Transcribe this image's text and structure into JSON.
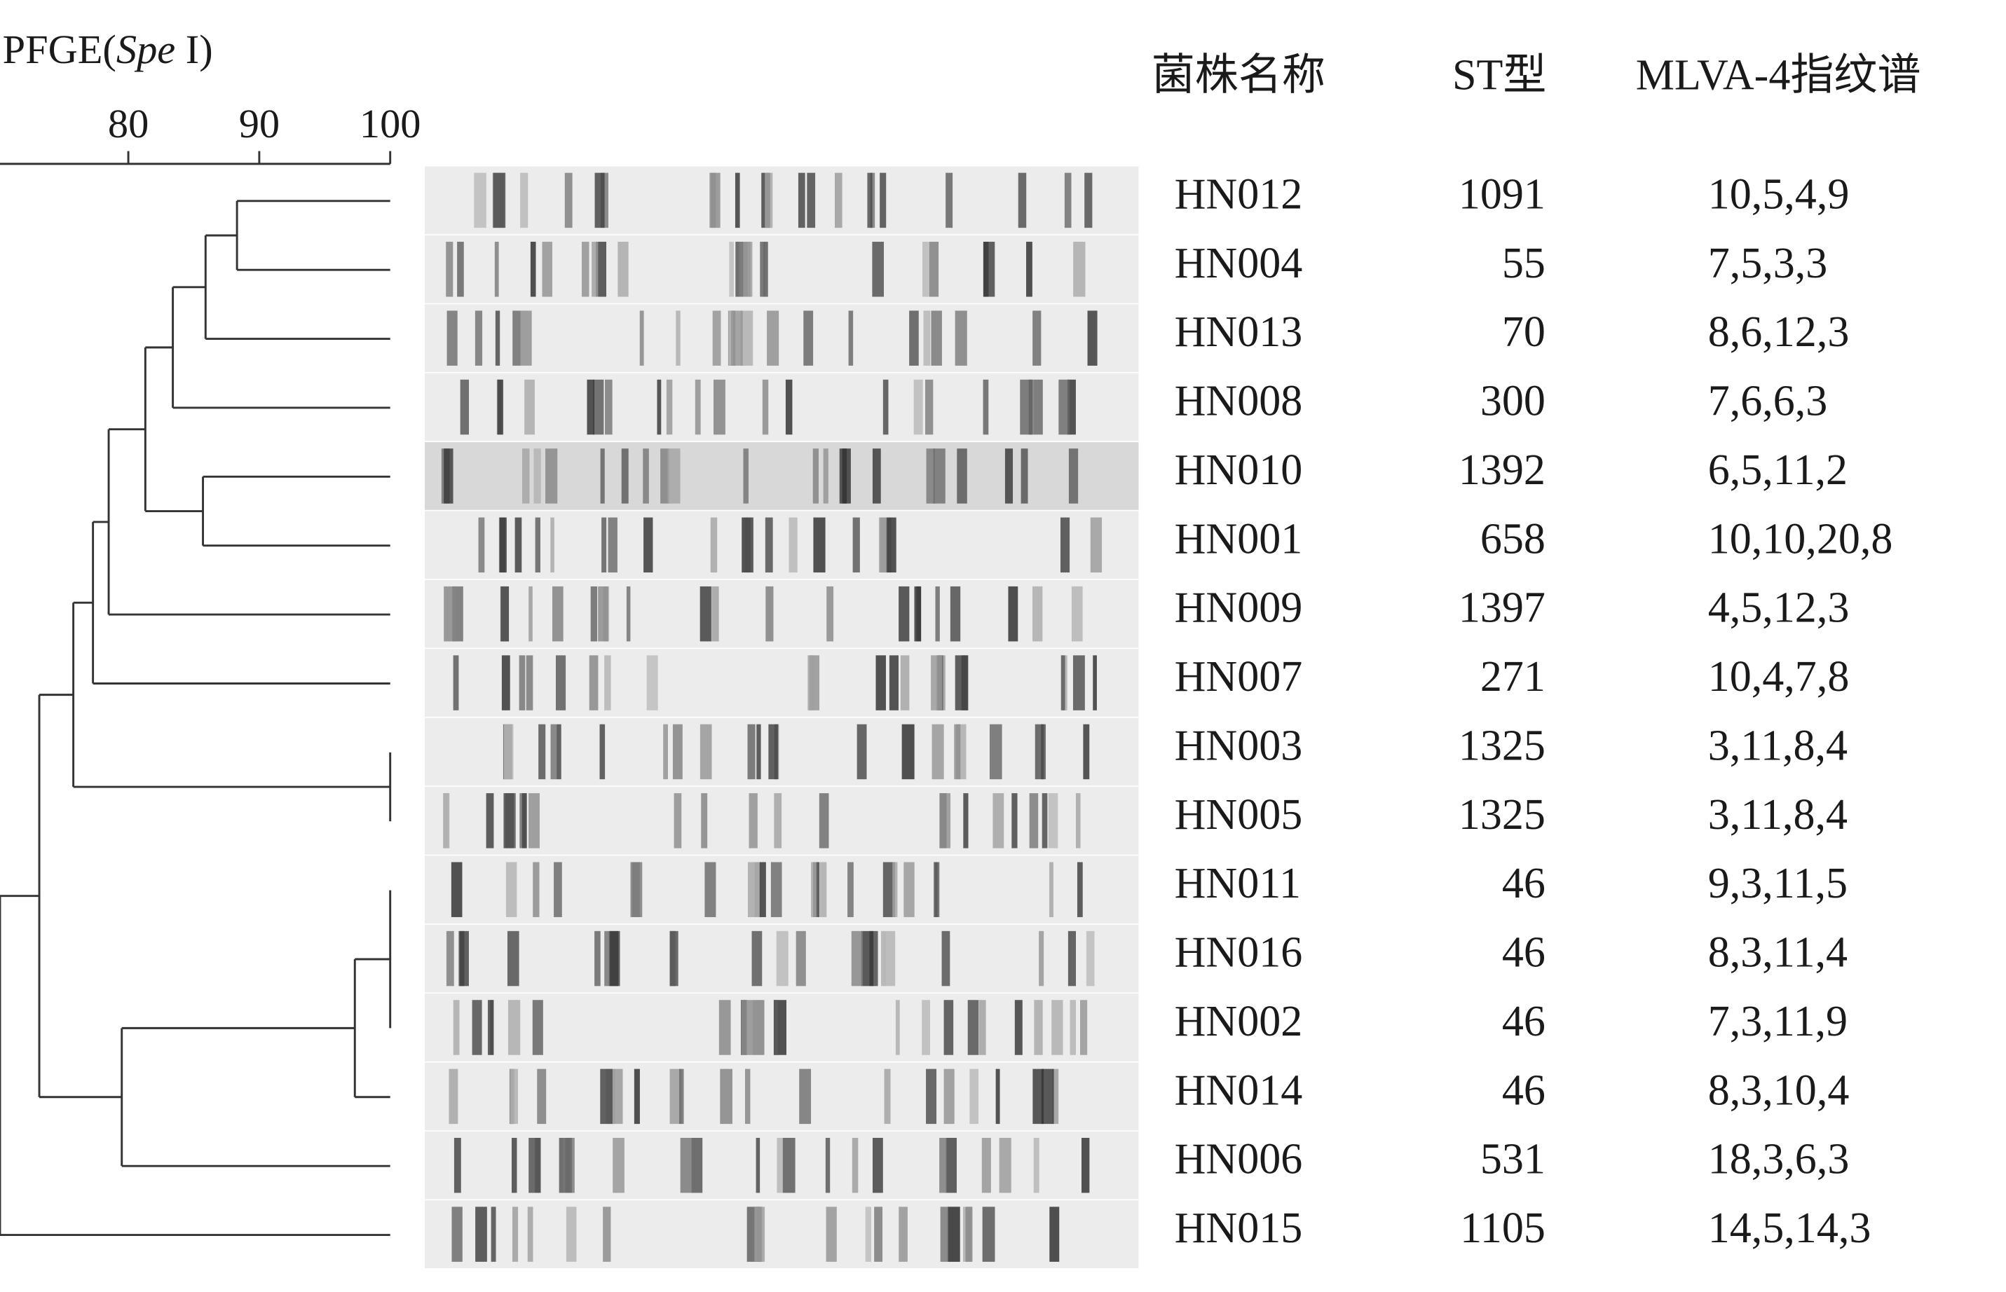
{
  "dendrogram": {
    "title_prefix": "PFGE(",
    "title_italic": "Spe",
    "title_suffix": " I)",
    "xlim": [
      70.2,
      100
    ],
    "xticks": [
      80,
      90,
      100
    ],
    "tree": {
      "similarity": 70.2,
      "children": [
        {
          "similarity": 73.2,
          "children": [
            {
              "similarity": 75.8,
              "children": [
                {
                  "similarity": 77.3,
                  "children": [
                    {
                      "similarity": 78.5,
                      "children": [
                        {
                          "similarity": 81.3,
                          "children": [
                            {
                              "similarity": 83.4,
                              "children": [
                                {
                                  "similarity": 85.9,
                                  "children": [
                                    {
                                      "similarity": 88.3,
                                      "children": [
                                        "HN012",
                                        "HN004"
                                      ]
                                    },
                                    "HN013"
                                  ]
                                },
                                "HN008"
                              ]
                            },
                            {
                              "similarity": 85.7,
                              "children": [
                                "HN010",
                                "HN001"
                              ]
                            }
                          ]
                        },
                        "HN009"
                      ]
                    },
                    "HN007"
                  ]
                },
                {
                  "similarity": 100,
                  "children": [
                    "HN003",
                    "HN005"
                  ]
                }
              ]
            },
            {
              "similarity": 79.5,
              "children": [
                {
                  "similarity": 97.3,
                  "children": [
                    {
                      "similarity": 100,
                      "children": [
                        "HN011",
                        "HN016",
                        "HN002"
                      ]
                    },
                    "HN014"
                  ]
                },
                "HN006"
              ]
            }
          ]
        },
        "HN015"
      ]
    }
  },
  "table": {
    "headers": [
      "菌株名称",
      "ST型",
      "MLVA-4指纹谱"
    ],
    "rows": [
      [
        "HN012",
        "1091",
        "10,5,4,9"
      ],
      [
        "HN004",
        "55",
        "7,5,3,3"
      ],
      [
        "HN013",
        "70",
        "8,6,12,3"
      ],
      [
        "HN008",
        "300",
        "7,6,6,3"
      ],
      [
        "HN010",
        "1392",
        "6,5,11,2"
      ],
      [
        "HN001",
        "658",
        "10,10,20,8"
      ],
      [
        "HN009",
        "1397",
        "4,5,12,3"
      ],
      [
        "HN007",
        "271",
        "10,4,7,8"
      ],
      [
        "HN003",
        "1325",
        "3,11,8,4"
      ],
      [
        "HN005",
        "1325",
        "3,11,8,4"
      ],
      [
        "HN011",
        "46",
        "9,3,11,5"
      ],
      [
        "HN016",
        "46",
        "8,3,11,4"
      ],
      [
        "HN002",
        "46",
        "7,3,11,9"
      ],
      [
        "HN014",
        "46",
        "8,3,10,4"
      ],
      [
        "HN006",
        "531",
        "18,3,6,3"
      ],
      [
        "HN015",
        "1105",
        "14,5,14,3"
      ]
    ]
  }
}
